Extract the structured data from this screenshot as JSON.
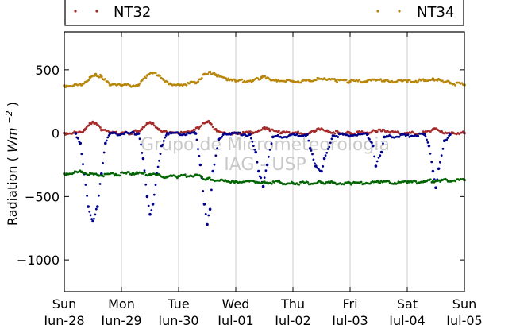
{
  "chart_data": {
    "type": "scatter",
    "ylabel": "Radiation",
    "ylabel_unit": "Wm",
    "ylabel_exp": "−2",
    "ylim": [
      -1250,
      800
    ],
    "yticks": [
      500,
      0,
      -500,
      -1000
    ],
    "ytick_labels": [
      "500",
      "0",
      "−500",
      "−1000"
    ],
    "xlim": [
      0,
      7
    ],
    "xticks": [
      {
        "x": 0,
        "day": "Sun",
        "date": "Jun-28"
      },
      {
        "x": 1,
        "day": "Mon",
        "date": "Jun-29"
      },
      {
        "x": 2,
        "day": "Tue",
        "date": "Jun-30"
      },
      {
        "x": 3,
        "day": "Wed",
        "date": "Jul-01"
      },
      {
        "x": 4,
        "day": "Thu",
        "date": "Jul-02"
      },
      {
        "x": 5,
        "day": "Fri",
        "date": "Jul-03"
      },
      {
        "x": 6,
        "day": "Sat",
        "date": "Jul-04"
      },
      {
        "x": 7,
        "day": "Sun",
        "date": "Jul-05"
      }
    ],
    "grid": true,
    "legend_placement": "top",
    "watermark": [
      "Grupo de Micrometeorologia",
      "IAG - USP"
    ],
    "series": [
      {
        "name": "NT32",
        "color": "#a52a2a",
        "points": [
          [
            0,
            0
          ],
          [
            0.2,
            5
          ],
          [
            0.35,
            25
          ],
          [
            0.45,
            80
          ],
          [
            0.5,
            88
          ],
          [
            0.55,
            80
          ],
          [
            0.65,
            25
          ],
          [
            0.8,
            3
          ],
          [
            1,
            0
          ],
          [
            1.2,
            5
          ],
          [
            1.35,
            30
          ],
          [
            1.45,
            78
          ],
          [
            1.5,
            85
          ],
          [
            1.55,
            78
          ],
          [
            1.65,
            30
          ],
          [
            1.8,
            3
          ],
          [
            2,
            0
          ],
          [
            2.2,
            5
          ],
          [
            2.35,
            40
          ],
          [
            2.45,
            80
          ],
          [
            2.5,
            88
          ],
          [
            2.55,
            80
          ],
          [
            2.65,
            30
          ],
          [
            2.8,
            3
          ],
          [
            3,
            0
          ],
          [
            3.3,
            2
          ],
          [
            3.4,
            20
          ],
          [
            3.5,
            45
          ],
          [
            3.6,
            20
          ],
          [
            3.8,
            2
          ],
          [
            4,
            0
          ],
          [
            4.3,
            3
          ],
          [
            4.4,
            20
          ],
          [
            4.5,
            35
          ],
          [
            4.6,
            20
          ],
          [
            4.8,
            2
          ],
          [
            5,
            0
          ],
          [
            5.3,
            2
          ],
          [
            5.45,
            15
          ],
          [
            5.55,
            18
          ],
          [
            5.7,
            5
          ],
          [
            6,
            0
          ],
          [
            6.3,
            3
          ],
          [
            6.45,
            30
          ],
          [
            6.5,
            35
          ],
          [
            6.6,
            12
          ],
          [
            6.8,
            2
          ],
          [
            7,
            0
          ]
        ]
      },
      {
        "name": "NT34",
        "color": "#b8860b",
        "points": [
          [
            0,
            375
          ],
          [
            0.3,
            380
          ],
          [
            0.45,
            440
          ],
          [
            0.55,
            465
          ],
          [
            0.65,
            445
          ],
          [
            0.8,
            380
          ],
          [
            1,
            375
          ],
          [
            1.3,
            380
          ],
          [
            1.45,
            455
          ],
          [
            1.55,
            475
          ],
          [
            1.65,
            455
          ],
          [
            1.85,
            390
          ],
          [
            2,
            385
          ],
          [
            2.3,
            395
          ],
          [
            2.45,
            465
          ],
          [
            2.55,
            482
          ],
          [
            2.65,
            460
          ],
          [
            2.85,
            420
          ],
          [
            3,
            410
          ],
          [
            3.3,
            415
          ],
          [
            3.45,
            440
          ],
          [
            3.55,
            435
          ],
          [
            3.7,
            420
          ],
          [
            4,
            408
          ],
          [
            4.3,
            412
          ],
          [
            4.45,
            430
          ],
          [
            4.55,
            430
          ],
          [
            4.75,
            415
          ],
          [
            5,
            408
          ],
          [
            5.3,
            410
          ],
          [
            5.45,
            418
          ],
          [
            5.6,
            412
          ],
          [
            6,
            408
          ],
          [
            6.3,
            415
          ],
          [
            6.45,
            430
          ],
          [
            6.55,
            425
          ],
          [
            6.75,
            395
          ],
          [
            7,
            380
          ]
        ]
      },
      {
        "color": "#00008b",
        "points": [
          [
            0.2,
            -3
          ],
          [
            0.28,
            -80
          ],
          [
            0.35,
            -320
          ],
          [
            0.42,
            -580
          ],
          [
            0.5,
            -695
          ],
          [
            0.58,
            -580
          ],
          [
            0.65,
            -320
          ],
          [
            0.72,
            -80
          ],
          [
            0.8,
            -3
          ],
          [
            1.3,
            -3
          ],
          [
            1.38,
            -200
          ],
          [
            1.45,
            -500
          ],
          [
            1.5,
            -640
          ],
          [
            1.55,
            -560
          ],
          [
            1.62,
            -320
          ],
          [
            1.7,
            -100
          ],
          [
            1.8,
            -3
          ],
          [
            2.3,
            -3
          ],
          [
            2.38,
            -250
          ],
          [
            2.45,
            -560
          ],
          [
            2.5,
            -720
          ],
          [
            2.55,
            -600
          ],
          [
            2.6,
            -300
          ],
          [
            2.7,
            -50
          ],
          [
            2.8,
            -3
          ],
          [
            3.25,
            -10
          ],
          [
            3.35,
            -150
          ],
          [
            3.4,
            -300
          ],
          [
            3.48,
            -420
          ],
          [
            3.55,
            -250
          ],
          [
            3.65,
            -30
          ],
          [
            4.25,
            -10
          ],
          [
            4.3,
            -120
          ],
          [
            4.4,
            -260
          ],
          [
            4.5,
            -300
          ],
          [
            4.55,
            -200
          ],
          [
            4.7,
            -20
          ],
          [
            5.3,
            -10
          ],
          [
            5.4,
            -100
          ],
          [
            5.45,
            -260
          ],
          [
            5.55,
            -150
          ],
          [
            5.6,
            -30
          ],
          [
            6.3,
            -10
          ],
          [
            6.38,
            -100
          ],
          [
            6.45,
            -300
          ],
          [
            6.5,
            -430
          ],
          [
            6.55,
            -280
          ],
          [
            6.65,
            -60
          ],
          [
            6.75,
            -10
          ]
        ]
      },
      {
        "color": "#006400",
        "points": [
          [
            0,
            -320
          ],
          [
            0.3,
            -305
          ],
          [
            0.6,
            -335
          ],
          [
            0.9,
            -325
          ],
          [
            1.2,
            -315
          ],
          [
            1.5,
            -325
          ],
          [
            1.8,
            -345
          ],
          [
            2,
            -340
          ],
          [
            2.3,
            -330
          ],
          [
            2.5,
            -360
          ],
          [
            2.8,
            -375
          ],
          [
            3,
            -380
          ],
          [
            3.5,
            -385
          ],
          [
            4,
            -395
          ],
          [
            4.5,
            -390
          ],
          [
            5,
            -395
          ],
          [
            5.5,
            -385
          ],
          [
            6,
            -390
          ],
          [
            6.3,
            -380
          ],
          [
            6.6,
            -370
          ],
          [
            7,
            -370
          ]
        ]
      }
    ]
  }
}
